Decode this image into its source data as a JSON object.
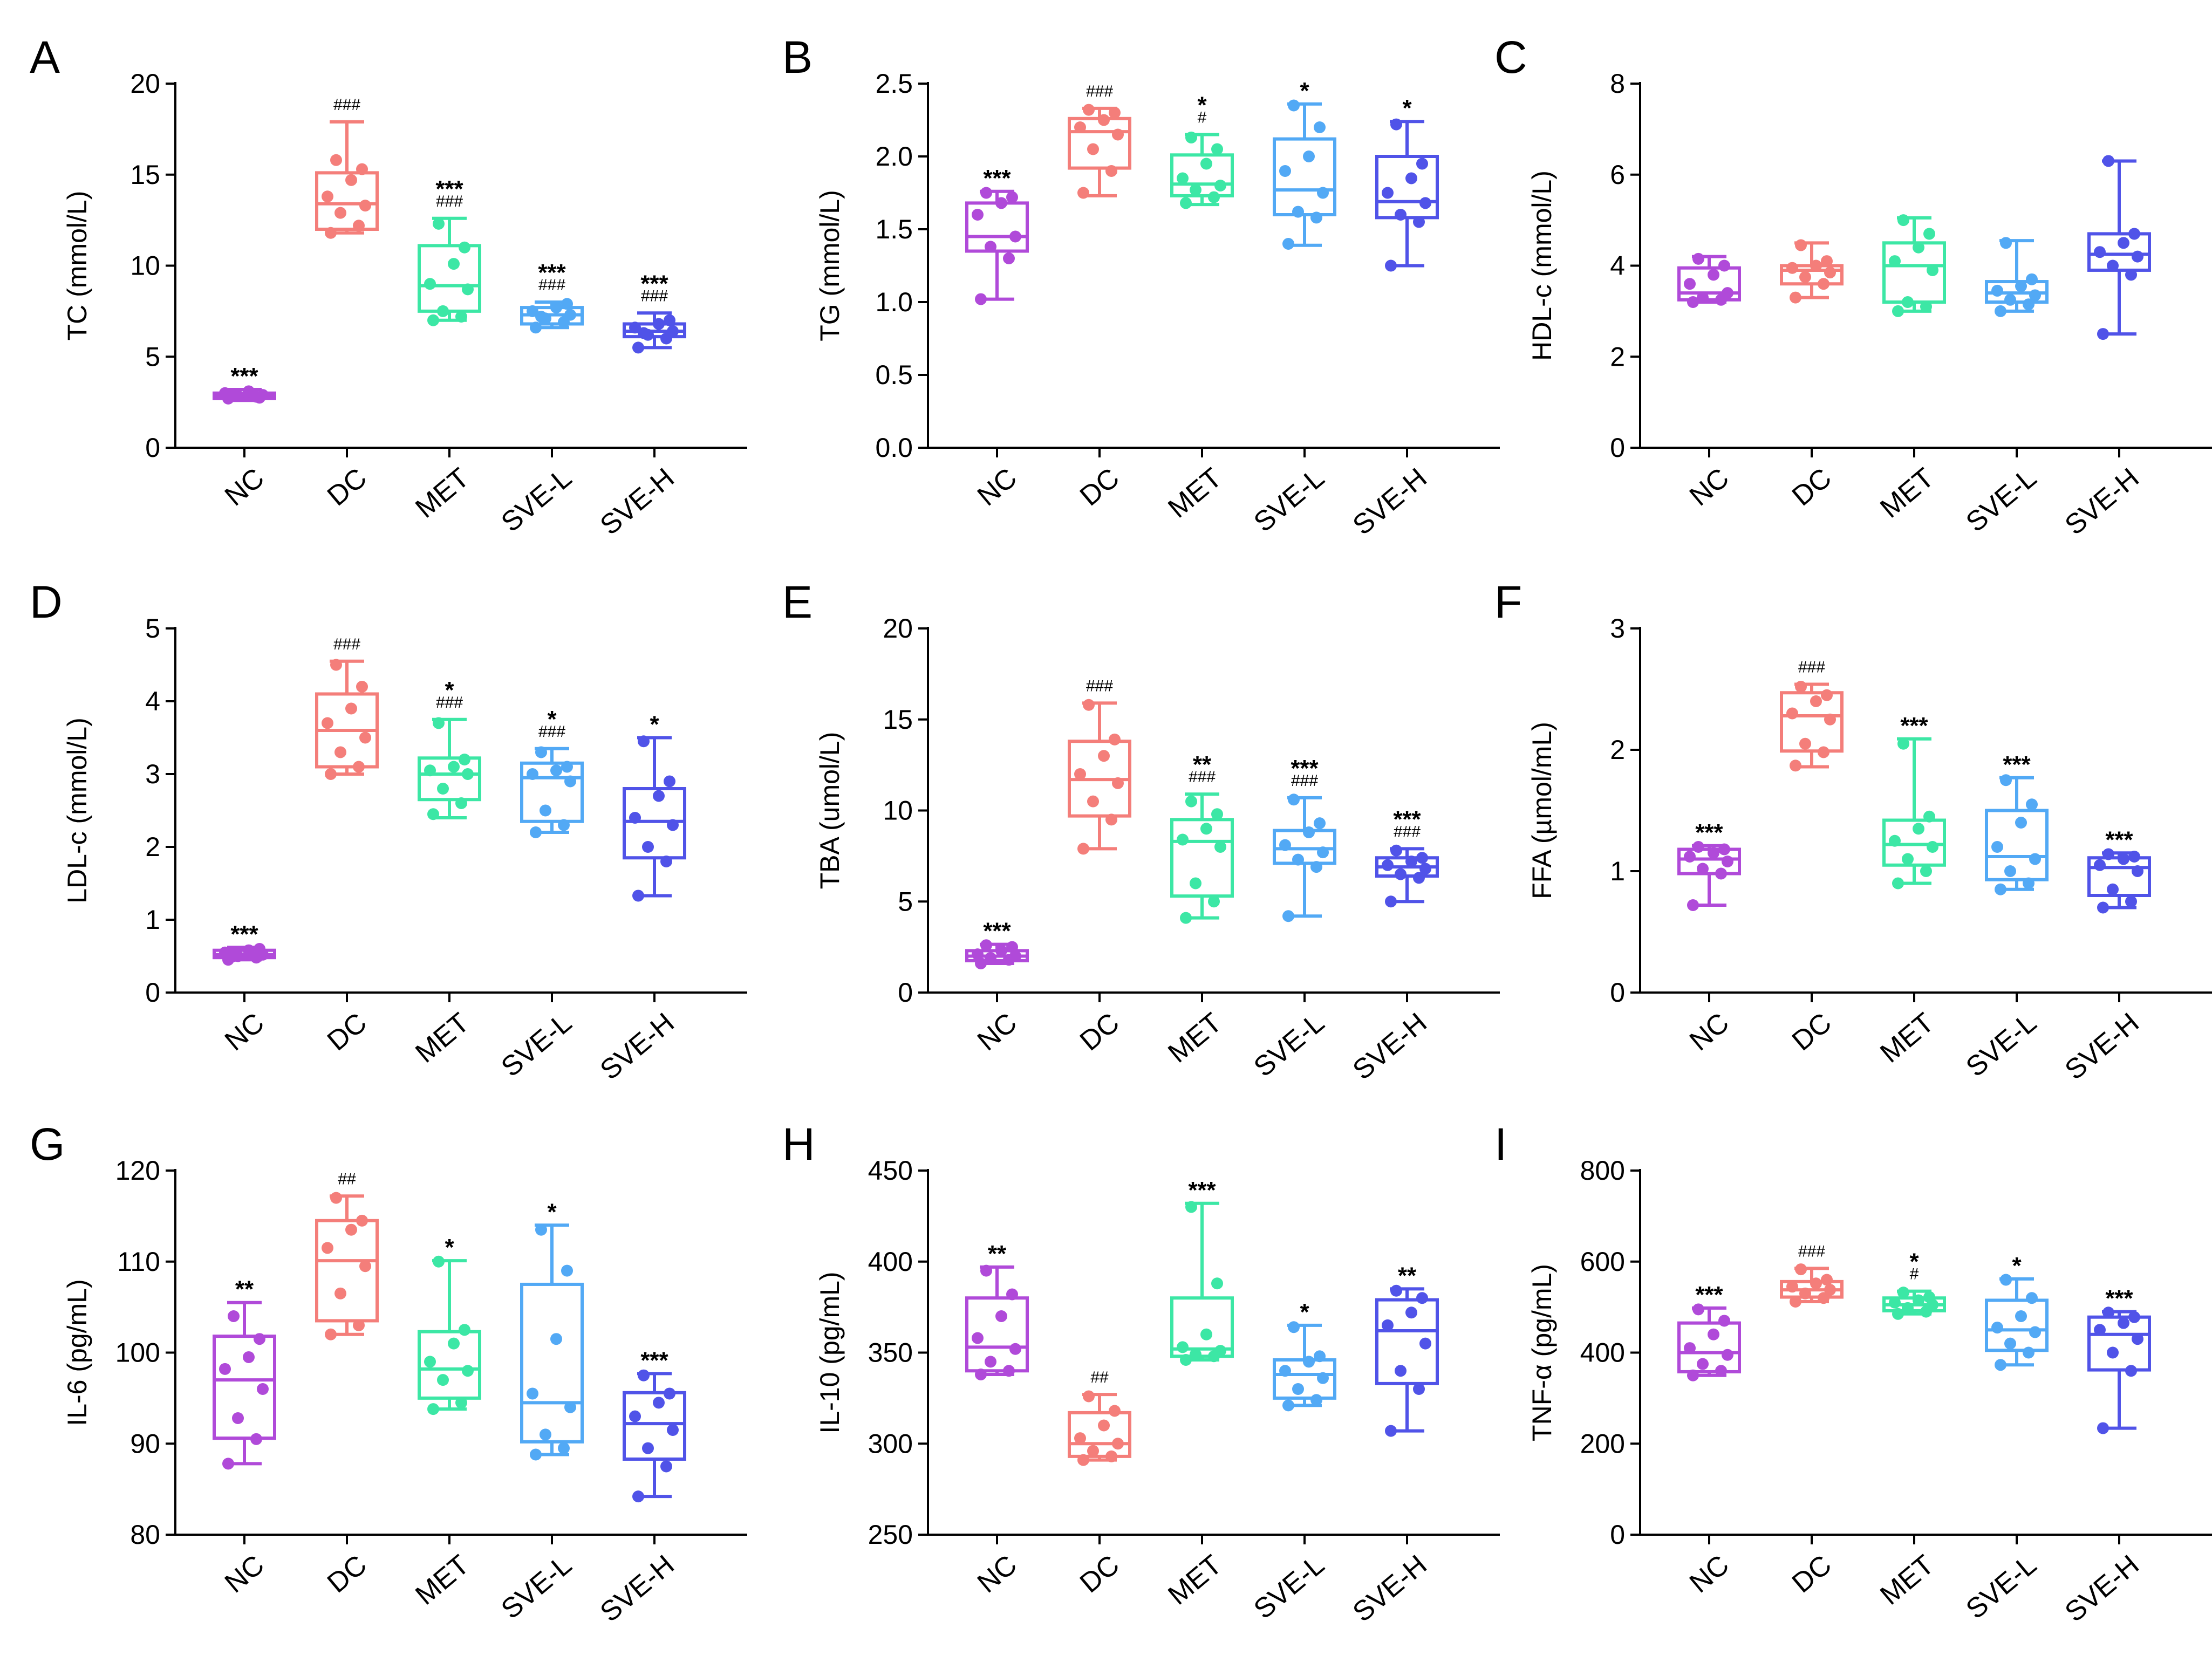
{
  "figure": {
    "groups": [
      "NC",
      "DC",
      "MET",
      "SVE-L",
      "SVE-H"
    ],
    "colors": {
      "NC": "#B04AD9",
      "DC": "#F47E7A",
      "MET": "#3CE7A5",
      "SVE-L": "#52A9F5",
      "SVE-H": "#5053E8"
    }
  },
  "chart_data": [
    {
      "letter": "A",
      "type": "box",
      "ylabel": "TC (mmol/L)",
      "ylim": [
        0,
        20
      ],
      "yticks": [
        "0",
        "5",
        "10",
        "15",
        "20"
      ],
      "groups": [
        {
          "name": "NC",
          "min": 2.6,
          "q1": 2.7,
          "median": 2.85,
          "q3": 3.0,
          "max": 3.2,
          "points": [
            2.7,
            2.8,
            2.85,
            2.9,
            3.0,
            3.1,
            2.75,
            2.95
          ],
          "sig": "***",
          "hash": ""
        },
        {
          "name": "DC",
          "min": 11.8,
          "q1": 12.0,
          "median": 13.4,
          "q3": 15.1,
          "max": 17.9,
          "points": [
            11.8,
            12.2,
            12.9,
            13.3,
            13.8,
            14.7,
            15.3,
            15.8
          ],
          "sig": "",
          "hash": "###"
        },
        {
          "name": "MET",
          "min": 7.0,
          "q1": 7.5,
          "median": 8.9,
          "q3": 11.1,
          "max": 12.6,
          "points": [
            7.0,
            7.2,
            7.5,
            8.7,
            9.0,
            10.1,
            11.0,
            12.3
          ],
          "sig": "***",
          "hash": "###"
        },
        {
          "name": "SVE-L",
          "min": 6.6,
          "q1": 6.8,
          "median": 7.3,
          "q3": 7.7,
          "max": 8.0,
          "points": [
            6.6,
            6.9,
            7.1,
            7.3,
            7.5,
            7.7,
            7.9,
            7.2
          ],
          "sig": "***",
          "hash": "###"
        },
        {
          "name": "SVE-H",
          "min": 5.5,
          "q1": 6.1,
          "median": 6.4,
          "q3": 6.8,
          "max": 7.4,
          "points": [
            5.5,
            6.0,
            6.2,
            6.4,
            6.6,
            6.8,
            7.0,
            6.3
          ],
          "sig": "***",
          "hash": "###"
        }
      ]
    },
    {
      "letter": "B",
      "type": "box",
      "ylabel": "TG (mmol/L)",
      "ylim": [
        0,
        2.5
      ],
      "yticks": [
        "0.0",
        "0.5",
        "1.0",
        "1.5",
        "2.0",
        "2.5"
      ],
      "groups": [
        {
          "name": "NC",
          "min": 1.02,
          "q1": 1.35,
          "median": 1.45,
          "q3": 1.68,
          "max": 1.76,
          "points": [
            1.02,
            1.3,
            1.38,
            1.45,
            1.6,
            1.68,
            1.72,
            1.75
          ],
          "sig": "***",
          "hash": ""
        },
        {
          "name": "DC",
          "min": 1.73,
          "q1": 1.92,
          "median": 2.17,
          "q3": 2.26,
          "max": 2.33,
          "points": [
            1.75,
            1.9,
            2.05,
            2.15,
            2.2,
            2.25,
            2.3,
            2.32
          ],
          "sig": "",
          "hash": "###"
        },
        {
          "name": "MET",
          "min": 1.67,
          "q1": 1.73,
          "median": 1.81,
          "q3": 2.01,
          "max": 2.15,
          "points": [
            1.68,
            1.72,
            1.77,
            1.8,
            1.85,
            1.95,
            2.05,
            2.13
          ],
          "sig": "*",
          "hash": "#"
        },
        {
          "name": "SVE-L",
          "min": 1.39,
          "q1": 1.6,
          "median": 1.77,
          "q3": 2.12,
          "max": 2.36,
          "points": [
            1.4,
            1.58,
            1.62,
            1.75,
            1.9,
            2.0,
            2.2,
            2.35
          ],
          "sig": "*",
          "hash": ""
        },
        {
          "name": "SVE-H",
          "min": 1.25,
          "q1": 1.58,
          "median": 1.69,
          "q3": 2.0,
          "max": 2.24,
          "points": [
            1.25,
            1.55,
            1.6,
            1.68,
            1.75,
            1.85,
            1.95,
            2.22
          ],
          "sig": "*",
          "hash": ""
        }
      ]
    },
    {
      "letter": "C",
      "type": "box",
      "ylabel": "HDL-c (mmol/L)",
      "ylim": [
        0,
        8
      ],
      "yticks": [
        "0",
        "2",
        "4",
        "6",
        "8"
      ],
      "groups": [
        {
          "name": "NC",
          "min": 3.2,
          "q1": 3.25,
          "median": 3.4,
          "q3": 3.95,
          "max": 4.2,
          "points": [
            3.2,
            3.25,
            3.3,
            3.4,
            3.6,
            3.8,
            4.0,
            4.15
          ],
          "sig": "",
          "hash": ""
        },
        {
          "name": "DC",
          "min": 3.3,
          "q1": 3.6,
          "median": 3.9,
          "q3": 4.0,
          "max": 4.5,
          "points": [
            3.3,
            3.6,
            3.75,
            3.85,
            3.95,
            4.0,
            4.1,
            4.45
          ],
          "sig": "",
          "hash": ""
        },
        {
          "name": "MET",
          "min": 3.0,
          "q1": 3.2,
          "median": 4.0,
          "q3": 4.5,
          "max": 5.05,
          "points": [
            3.0,
            3.1,
            3.2,
            3.9,
            4.1,
            4.4,
            4.7,
            5.0
          ],
          "sig": "",
          "hash": ""
        },
        {
          "name": "SVE-L",
          "min": 3.0,
          "q1": 3.2,
          "median": 3.4,
          "q3": 3.65,
          "max": 4.55,
          "points": [
            3.0,
            3.15,
            3.25,
            3.35,
            3.45,
            3.55,
            3.7,
            4.5
          ],
          "sig": "",
          "hash": ""
        },
        {
          "name": "SVE-H",
          "min": 2.5,
          "q1": 3.9,
          "median": 4.25,
          "q3": 4.7,
          "max": 6.3,
          "points": [
            2.5,
            3.8,
            4.0,
            4.2,
            4.3,
            4.5,
            4.7,
            6.3
          ],
          "sig": "",
          "hash": ""
        }
      ]
    },
    {
      "letter": "D",
      "type": "box",
      "ylabel": "LDL-c (mmol/L)",
      "ylim": [
        0,
        5
      ],
      "yticks": [
        "0",
        "1",
        "2",
        "3",
        "4",
        "5"
      ],
      "groups": [
        {
          "name": "NC",
          "min": 0.45,
          "q1": 0.48,
          "median": 0.52,
          "q3": 0.58,
          "max": 0.62,
          "points": [
            0.45,
            0.48,
            0.5,
            0.52,
            0.55,
            0.58,
            0.6,
            0.5
          ],
          "sig": "***",
          "hash": ""
        },
        {
          "name": "DC",
          "min": 3.0,
          "q1": 3.1,
          "median": 3.6,
          "q3": 4.1,
          "max": 4.55,
          "points": [
            3.0,
            3.1,
            3.3,
            3.5,
            3.7,
            3.9,
            4.2,
            4.5
          ],
          "sig": "",
          "hash": "###"
        },
        {
          "name": "MET",
          "min": 2.4,
          "q1": 2.65,
          "median": 3.0,
          "q3": 3.22,
          "max": 3.75,
          "points": [
            2.45,
            2.6,
            2.8,
            3.0,
            3.05,
            3.1,
            3.2,
            3.7
          ],
          "sig": "*",
          "hash": "###"
        },
        {
          "name": "SVE-L",
          "min": 2.2,
          "q1": 2.35,
          "median": 2.95,
          "q3": 3.15,
          "max": 3.35,
          "points": [
            2.2,
            2.3,
            2.5,
            2.9,
            3.0,
            3.05,
            3.1,
            3.3
          ],
          "sig": "*",
          "hash": "###"
        },
        {
          "name": "SVE-H",
          "min": 1.33,
          "q1": 1.85,
          "median": 2.35,
          "q3": 2.8,
          "max": 3.5,
          "points": [
            1.33,
            1.8,
            2.0,
            2.3,
            2.4,
            2.7,
            2.9,
            3.45
          ],
          "sig": "*",
          "hash": ""
        }
      ]
    },
    {
      "letter": "E",
      "type": "box",
      "ylabel": "TBA (umol/L)",
      "ylim": [
        0,
        20
      ],
      "yticks": [
        "0",
        "5",
        "10",
        "15",
        "20"
      ],
      "groups": [
        {
          "name": "NC",
          "min": 1.6,
          "q1": 1.75,
          "median": 2.0,
          "q3": 2.3,
          "max": 2.65,
          "points": [
            1.6,
            1.8,
            1.9,
            2.0,
            2.1,
            2.3,
            2.5,
            2.6
          ],
          "sig": "***",
          "hash": ""
        },
        {
          "name": "DC",
          "min": 7.9,
          "q1": 9.7,
          "median": 11.7,
          "q3": 13.8,
          "max": 15.9,
          "points": [
            7.9,
            9.5,
            10.5,
            11.5,
            12.0,
            13.0,
            13.9,
            15.8
          ],
          "sig": "",
          "hash": "###"
        },
        {
          "name": "MET",
          "min": 4.1,
          "q1": 5.3,
          "median": 8.3,
          "q3": 9.5,
          "max": 10.9,
          "points": [
            4.1,
            5.0,
            6.0,
            8.0,
            8.4,
            9.0,
            9.8,
            10.5
          ],
          "sig": "**",
          "hash": "###"
        },
        {
          "name": "SVE-L",
          "min": 4.2,
          "q1": 7.1,
          "median": 7.9,
          "q3": 8.9,
          "max": 10.7,
          "points": [
            4.2,
            6.9,
            7.3,
            7.7,
            8.1,
            8.8,
            9.3,
            10.6
          ],
          "sig": "***",
          "hash": "###"
        },
        {
          "name": "SVE-H",
          "min": 5.0,
          "q1": 6.4,
          "median": 6.9,
          "q3": 7.4,
          "max": 7.9,
          "points": [
            5.0,
            6.3,
            6.5,
            6.8,
            7.0,
            7.2,
            7.4,
            7.8
          ],
          "sig": "***",
          "hash": "###"
        }
      ]
    },
    {
      "letter": "F",
      "type": "box",
      "ylabel": "FFA (µmol/mL)",
      "ylim": [
        0,
        3
      ],
      "yticks": [
        "0",
        "1",
        "2",
        "3"
      ],
      "groups": [
        {
          "name": "NC",
          "min": 0.72,
          "q1": 0.98,
          "median": 1.1,
          "q3": 1.18,
          "max": 1.21,
          "points": [
            0.72,
            0.98,
            1.02,
            1.08,
            1.12,
            1.15,
            1.18,
            1.2
          ],
          "sig": "***",
          "hash": ""
        },
        {
          "name": "DC",
          "min": 1.86,
          "q1": 1.99,
          "median": 2.28,
          "q3": 2.47,
          "max": 2.54,
          "points": [
            1.87,
            1.98,
            2.05,
            2.25,
            2.3,
            2.4,
            2.45,
            2.52
          ],
          "sig": "",
          "hash": "###"
        },
        {
          "name": "MET",
          "min": 0.9,
          "q1": 1.05,
          "median": 1.22,
          "q3": 1.42,
          "max": 2.09,
          "points": [
            0.9,
            1.0,
            1.1,
            1.2,
            1.25,
            1.35,
            1.45,
            2.05
          ],
          "sig": "***",
          "hash": ""
        },
        {
          "name": "SVE-L",
          "min": 0.85,
          "q1": 0.93,
          "median": 1.12,
          "q3": 1.5,
          "max": 1.77,
          "points": [
            0.85,
            0.9,
            1.0,
            1.1,
            1.2,
            1.4,
            1.55,
            1.75
          ],
          "sig": "***",
          "hash": ""
        },
        {
          "name": "SVE-H",
          "min": 0.7,
          "q1": 0.8,
          "median": 1.03,
          "q3": 1.11,
          "max": 1.15,
          "points": [
            0.7,
            0.75,
            0.85,
            1.0,
            1.05,
            1.1,
            1.12,
            1.14
          ],
          "sig": "***",
          "hash": ""
        }
      ]
    },
    {
      "letter": "G",
      "type": "box",
      "ylabel": "IL-6 (pg/mL)",
      "ylim": [
        80,
        120
      ],
      "yticks": [
        "80",
        "90",
        "100",
        "110",
        "120"
      ],
      "groups": [
        {
          "name": "NC",
          "min": 87.8,
          "q1": 90.6,
          "median": 97.0,
          "q3": 101.8,
          "max": 105.5,
          "points": [
            87.8,
            90.5,
            92.8,
            96.0,
            98.2,
            99.5,
            101.5,
            104.0
          ],
          "sig": "**",
          "hash": ""
        },
        {
          "name": "DC",
          "min": 102.0,
          "q1": 103.5,
          "median": 110.1,
          "q3": 114.5,
          "max": 117.2,
          "points": [
            102.0,
            103.0,
            106.5,
            109.5,
            111.5,
            113.5,
            114.5,
            117.0
          ],
          "sig": "",
          "hash": "##"
        },
        {
          "name": "MET",
          "min": 93.8,
          "q1": 95.0,
          "median": 98.2,
          "q3": 102.3,
          "max": 110.1,
          "points": [
            93.8,
            94.5,
            97.0,
            98.0,
            99.0,
            101.0,
            102.5,
            110.0
          ],
          "sig": "*",
          "hash": ""
        },
        {
          "name": "SVE-L",
          "min": 88.8,
          "q1": 90.2,
          "median": 94.5,
          "q3": 107.5,
          "max": 114.0,
          "points": [
            88.8,
            89.5,
            91.0,
            94.0,
            95.5,
            101.5,
            109.0,
            113.5
          ],
          "sig": "*",
          "hash": ""
        },
        {
          "name": "SVE-H",
          "min": 84.2,
          "q1": 88.3,
          "median": 92.2,
          "q3": 95.6,
          "max": 97.7,
          "points": [
            84.2,
            87.5,
            89.5,
            91.5,
            93.0,
            94.5,
            95.5,
            97.5
          ],
          "sig": "***",
          "hash": ""
        }
      ]
    },
    {
      "letter": "H",
      "type": "box",
      "ylabel": "IL-10 (pg/mL)",
      "ylim": [
        250,
        450
      ],
      "yticks": [
        "250",
        "300",
        "350",
        "400",
        "450"
      ],
      "groups": [
        {
          "name": "NC",
          "min": 338,
          "q1": 340,
          "median": 353,
          "q3": 380,
          "max": 397,
          "points": [
            338,
            340,
            345,
            352,
            358,
            370,
            382,
            395
          ],
          "sig": "**",
          "hash": ""
        },
        {
          "name": "DC",
          "min": 291,
          "q1": 293,
          "median": 300,
          "q3": 317,
          "max": 327,
          "points": [
            291,
            293,
            296,
            300,
            303,
            310,
            318,
            326
          ],
          "sig": "",
          "hash": "##"
        },
        {
          "name": "MET",
          "min": 346,
          "q1": 348,
          "median": 352,
          "q3": 380,
          "max": 432,
          "points": [
            346,
            348,
            349,
            351,
            353,
            360,
            388,
            430
          ],
          "sig": "***",
          "hash": ""
        },
        {
          "name": "SVE-L",
          "min": 321,
          "q1": 325,
          "median": 338,
          "q3": 346,
          "max": 365,
          "points": [
            321,
            324,
            330,
            336,
            340,
            345,
            348,
            364
          ],
          "sig": "*",
          "hash": ""
        },
        {
          "name": "SVE-H",
          "min": 307,
          "q1": 333,
          "median": 362,
          "q3": 379,
          "max": 385,
          "points": [
            307,
            330,
            340,
            355,
            365,
            372,
            380,
            384
          ],
          "sig": "**",
          "hash": ""
        }
      ]
    },
    {
      "letter": "I",
      "type": "box",
      "ylabel": "TNF-α (pg/mL)",
      "ylim": [
        0,
        800
      ],
      "yticks": [
        "0",
        "200",
        "400",
        "600",
        "800"
      ],
      "groups": [
        {
          "name": "NC",
          "min": 350,
          "q1": 358,
          "median": 400,
          "q3": 465,
          "max": 498,
          "points": [
            350,
            360,
            375,
            395,
            410,
            440,
            470,
            495
          ],
          "sig": "***",
          "hash": ""
        },
        {
          "name": "DC",
          "min": 512,
          "q1": 522,
          "median": 538,
          "q3": 556,
          "max": 585,
          "points": [
            512,
            520,
            530,
            538,
            545,
            552,
            560,
            583
          ],
          "sig": "",
          "hash": "###"
        },
        {
          "name": "MET",
          "min": 485,
          "q1": 492,
          "median": 505,
          "q3": 520,
          "max": 535,
          "points": [
            485,
            490,
            498,
            505,
            510,
            515,
            522,
            532
          ],
          "sig": "*",
          "hash": "#"
        },
        {
          "name": "SVE-L",
          "min": 373,
          "q1": 405,
          "median": 450,
          "q3": 515,
          "max": 562,
          "points": [
            373,
            400,
            420,
            445,
            455,
            480,
            520,
            560
          ],
          "sig": "*",
          "hash": ""
        },
        {
          "name": "SVE-H",
          "min": 234,
          "q1": 362,
          "median": 440,
          "q3": 478,
          "max": 490,
          "points": [
            234,
            360,
            400,
            430,
            450,
            465,
            478,
            488
          ],
          "sig": "***",
          "hash": ""
        }
      ]
    }
  ]
}
